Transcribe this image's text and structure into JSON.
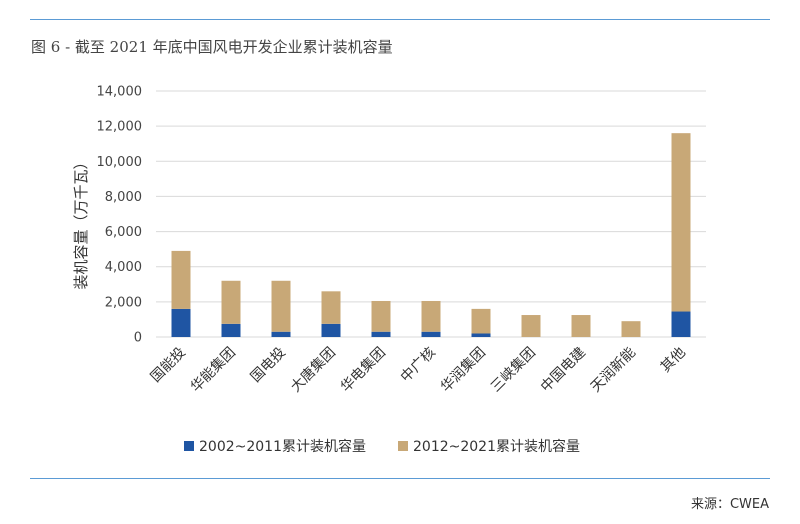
{
  "figure_title": "图 6 - 截至 2021 年底中国风电开发企业累计装机容量",
  "source": "来源：CWEA",
  "colors": {
    "series1": "#1f55a3",
    "series2": "#c8a877",
    "grid": "#d9d9d9",
    "rule": "#5b9bd5"
  },
  "chart_data": {
    "type": "bar",
    "stacked": true,
    "title": "",
    "xlabel": "",
    "ylabel": "装机容量（万千瓦）",
    "ylim": [
      0,
      14000
    ],
    "yticks": [
      0,
      2000,
      4000,
      6000,
      8000,
      10000,
      12000,
      14000
    ],
    "ytick_labels": [
      "0",
      "2,000",
      "4,000",
      "6,000",
      "8,000",
      "10,000",
      "12,000",
      "14,000"
    ],
    "grid": true,
    "legend": "bottom",
    "categories": [
      "国能投",
      "华能集团",
      "国电投",
      "大唐集团",
      "华电集团",
      "中广核",
      "华润集团",
      "三峡集团",
      "中国电建",
      "天润新能",
      "其他"
    ],
    "series": [
      {
        "name": "2002~2011累计装机容量",
        "values": [
          1600,
          750,
          300,
          750,
          300,
          300,
          200,
          0,
          0,
          0,
          1450
        ]
      },
      {
        "name": "2012~2021累计装机容量",
        "values": [
          3300,
          2450,
          2900,
          1850,
          1750,
          1750,
          1400,
          1250,
          1250,
          900,
          10150
        ]
      }
    ]
  }
}
